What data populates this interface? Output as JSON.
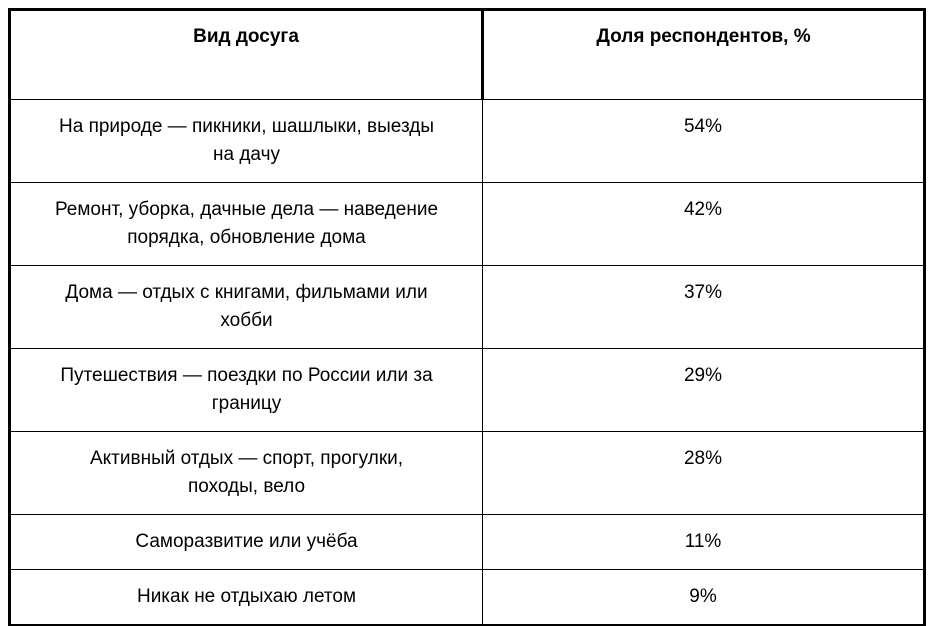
{
  "colors": {
    "background": "#ffffff",
    "border": "#000000",
    "text": "#000000"
  },
  "table": {
    "columns": [
      {
        "label": "Вид досуга"
      },
      {
        "label": "Доля респондентов, %"
      }
    ],
    "rows": [
      {
        "activity": "На природе — пикники, шашлыки, выезды\nна дачу",
        "share": "54%"
      },
      {
        "activity": "Ремонт, уборка, дачные дела — наведение\nпорядка, обновление дома",
        "share": "42%"
      },
      {
        "activity": "Дома — отдых с книгами, фильмами или\nхобби",
        "share": "37%"
      },
      {
        "activity": "Путешествия — поездки по России или за\nграницу",
        "share": "29%"
      },
      {
        "activity": "Активный отдых — спорт, прогулки,\nпоходы, вело",
        "share": "28%"
      },
      {
        "activity": "Саморазвитие или учёба",
        "share": "11%"
      },
      {
        "activity": "Никак не отдыхаю летом",
        "share": "9%"
      }
    ]
  },
  "chart_data": {
    "type": "table",
    "columns": [
      "Вид досуга",
      "Доля респондентов, %"
    ],
    "categories": [
      "На природе — пикники, шашлыки, выезды на дачу",
      "Ремонт, уборка, дачные дела — наведение порядка, обновление дома",
      "Дома — отдых с книгами, фильмами или хобби",
      "Путешествия — поездки по России или за границу",
      "Активный отдых — спорт, прогулки, походы, вело",
      "Саморазвитие или учёба",
      "Никак не отдыхаю летом"
    ],
    "values": [
      54,
      42,
      37,
      29,
      28,
      11,
      9
    ],
    "unit": "%"
  }
}
